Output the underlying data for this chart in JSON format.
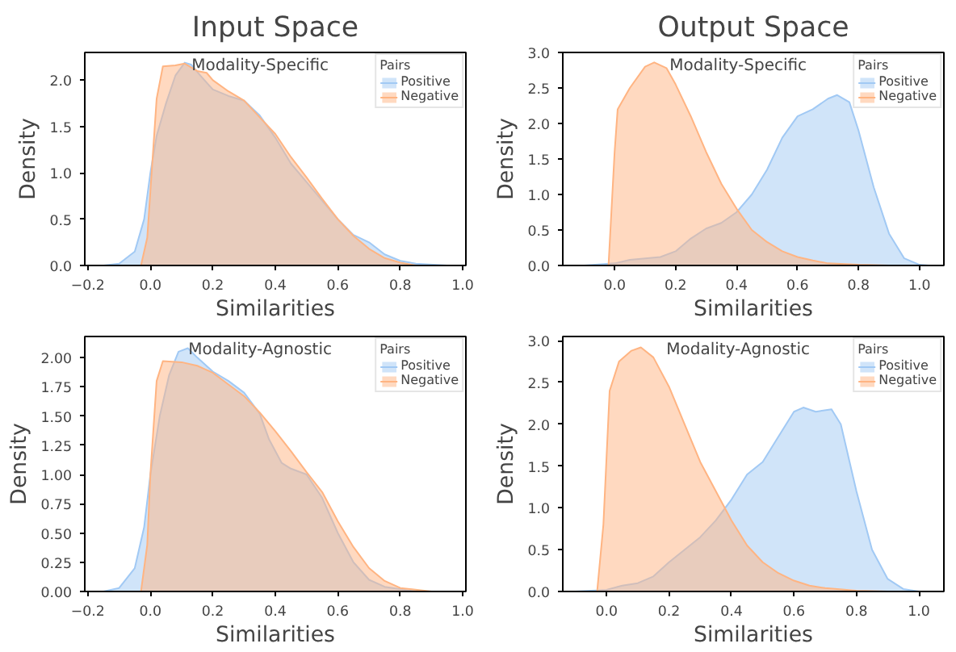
{
  "chart_data": [
    {
      "type": "area",
      "title": "Input Space",
      "subtitle": "Modality-Specific",
      "xlabel": "Similarities",
      "ylabel": "Density",
      "legend_title": "Pairs",
      "legend": "top right",
      "xlim": [
        -0.21,
        1.01
      ],
      "ylim": [
        0,
        2.3
      ],
      "xticks": [
        {
          "value": -0.2,
          "label": "−0.2"
        },
        {
          "value": 0,
          "label": "0.0"
        },
        {
          "value": 0.2,
          "label": "0.2"
        },
        {
          "value": 0.4,
          "label": "0.4"
        },
        {
          "value": 0.6,
          "label": "0.6"
        },
        {
          "value": 0.8,
          "label": "0.8"
        },
        {
          "value": 1,
          "label": "1.0"
        }
      ],
      "yticks": [
        {
          "value": 0,
          "label": "0.0"
        },
        {
          "value": 0.5,
          "label": "0.5"
        },
        {
          "value": 1,
          "label": "1.0"
        },
        {
          "value": 1.5,
          "label": "1.5"
        },
        {
          "value": 2,
          "label": "2.0"
        }
      ],
      "series": [
        {
          "name": "Positive",
          "color": "#a1c9f4",
          "x": [
            -0.15,
            -0.1,
            -0.05,
            -0.02,
            0.0,
            0.02,
            0.05,
            0.08,
            0.11,
            0.13,
            0.16,
            0.2,
            0.25,
            0.3,
            0.35,
            0.4,
            0.45,
            0.5,
            0.55,
            0.6,
            0.65,
            0.7,
            0.75,
            0.8,
            0.85,
            0.95
          ],
          "values": [
            0,
            0.02,
            0.15,
            0.5,
            1.0,
            1.4,
            1.75,
            2.05,
            2.19,
            2.17,
            2.05,
            1.9,
            1.83,
            1.78,
            1.62,
            1.38,
            1.1,
            0.9,
            0.7,
            0.5,
            0.33,
            0.25,
            0.12,
            0.05,
            0.02,
            0
          ]
        },
        {
          "name": "Negative",
          "color": "#ffb482",
          "x": [
            -0.03,
            -0.01,
            0.0,
            0.02,
            0.04,
            0.08,
            0.11,
            0.15,
            0.18,
            0.2,
            0.25,
            0.3,
            0.35,
            0.4,
            0.45,
            0.5,
            0.55,
            0.6,
            0.65,
            0.7,
            0.75,
            0.8,
            0.85
          ],
          "values": [
            0,
            0.3,
            0.8,
            1.8,
            2.15,
            2.16,
            2.18,
            2.1,
            2.08,
            2.0,
            1.88,
            1.78,
            1.6,
            1.42,
            1.17,
            0.95,
            0.72,
            0.5,
            0.32,
            0.18,
            0.08,
            0.03,
            0
          ]
        }
      ]
    },
    {
      "type": "area",
      "title": "Output Space",
      "subtitle": "Modality-Specific",
      "xlabel": "Similarities",
      "ylabel": "Density",
      "legend_title": "Pairs",
      "legend": "top right",
      "xlim": [
        -0.17,
        1.08
      ],
      "ylim": [
        0,
        3.0
      ],
      "xticks": [
        {
          "value": 0,
          "label": "0.0"
        },
        {
          "value": 0.2,
          "label": "0.2"
        },
        {
          "value": 0.4,
          "label": "0.4"
        },
        {
          "value": 0.6,
          "label": "0.6"
        },
        {
          "value": 0.8,
          "label": "0.8"
        },
        {
          "value": 1,
          "label": "1.0"
        }
      ],
      "yticks": [
        {
          "value": 0,
          "label": "0.0"
        },
        {
          "value": 0.5,
          "label": "0.5"
        },
        {
          "value": 1,
          "label": "1.0"
        },
        {
          "value": 1.5,
          "label": "1.5"
        },
        {
          "value": 2,
          "label": "2.0"
        },
        {
          "value": 2.5,
          "label": "2.5"
        },
        {
          "value": 3,
          "label": "3.0"
        }
      ],
      "series": [
        {
          "name": "Positive",
          "color": "#a1c9f4",
          "x": [
            -0.1,
            0.0,
            0.05,
            0.15,
            0.2,
            0.25,
            0.3,
            0.35,
            0.4,
            0.45,
            0.5,
            0.55,
            0.6,
            0.65,
            0.7,
            0.73,
            0.77,
            0.8,
            0.85,
            0.9,
            0.95,
            1.0,
            1.03
          ],
          "values": [
            0,
            0.03,
            0.08,
            0.12,
            0.2,
            0.38,
            0.52,
            0.6,
            0.75,
            1.0,
            1.35,
            1.8,
            2.1,
            2.2,
            2.35,
            2.4,
            2.3,
            1.9,
            1.1,
            0.45,
            0.1,
            0.01,
            0
          ]
        },
        {
          "name": "Negative",
          "color": "#ffb482",
          "x": [
            -0.02,
            0.0,
            0.01,
            0.05,
            0.1,
            0.13,
            0.17,
            0.2,
            0.25,
            0.3,
            0.35,
            0.4,
            0.45,
            0.5,
            0.55,
            0.6,
            0.65,
            0.7,
            0.8,
            0.9
          ],
          "values": [
            0,
            1.6,
            2.2,
            2.5,
            2.8,
            2.86,
            2.78,
            2.55,
            2.1,
            1.6,
            1.15,
            0.8,
            0.5,
            0.33,
            0.2,
            0.12,
            0.07,
            0.03,
            0.01,
            0
          ]
        }
      ]
    },
    {
      "type": "area",
      "subtitle": "Modality-Agnostic",
      "xlabel": "Similarities",
      "ylabel": "Density",
      "legend_title": "Pairs",
      "legend": "top right",
      "xlim": [
        -0.21,
        1.01
      ],
      "ylim": [
        0,
        2.18
      ],
      "xticks": [
        {
          "value": -0.2,
          "label": "−0.2"
        },
        {
          "value": 0,
          "label": "0.0"
        },
        {
          "value": 0.2,
          "label": "0.2"
        },
        {
          "value": 0.4,
          "label": "0.4"
        },
        {
          "value": 0.6,
          "label": "0.6"
        },
        {
          "value": 0.8,
          "label": "0.8"
        },
        {
          "value": 1,
          "label": "1.0"
        }
      ],
      "yticks": [
        {
          "value": 0,
          "label": "0.00"
        },
        {
          "value": 0.25,
          "label": "0.25"
        },
        {
          "value": 0.5,
          "label": "0.50"
        },
        {
          "value": 0.75,
          "label": "0.75"
        },
        {
          "value": 1,
          "label": "1.00"
        },
        {
          "value": 1.25,
          "label": "1.25"
        },
        {
          "value": 1.5,
          "label": "1.50"
        },
        {
          "value": 1.75,
          "label": "1.75"
        },
        {
          "value": 2,
          "label": "2.00"
        }
      ],
      "series": [
        {
          "name": "Positive",
          "color": "#a1c9f4",
          "x": [
            -0.15,
            -0.1,
            -0.05,
            -0.02,
            0.0,
            0.03,
            0.06,
            0.09,
            0.12,
            0.15,
            0.2,
            0.25,
            0.3,
            0.35,
            0.38,
            0.42,
            0.45,
            0.5,
            0.55,
            0.6,
            0.65,
            0.7,
            0.75,
            0.85
          ],
          "values": [
            0,
            0.03,
            0.2,
            0.55,
            1.0,
            1.5,
            1.85,
            2.05,
            2.08,
            2.0,
            1.88,
            1.8,
            1.7,
            1.52,
            1.3,
            1.1,
            1.05,
            1.0,
            0.8,
            0.5,
            0.25,
            0.1,
            0.04,
            0
          ]
        },
        {
          "name": "Negative",
          "color": "#ffb482",
          "x": [
            -0.03,
            -0.01,
            0.0,
            0.02,
            0.04,
            0.1,
            0.15,
            0.2,
            0.25,
            0.3,
            0.35,
            0.4,
            0.45,
            0.5,
            0.55,
            0.6,
            0.65,
            0.7,
            0.75,
            0.8,
            0.9
          ],
          "values": [
            0,
            0.4,
            1.0,
            1.8,
            1.97,
            1.96,
            1.93,
            1.87,
            1.77,
            1.67,
            1.53,
            1.37,
            1.2,
            1.02,
            0.85,
            0.6,
            0.38,
            0.2,
            0.09,
            0.03,
            0
          ]
        }
      ]
    },
    {
      "type": "area",
      "subtitle": "Modality-Agnostic",
      "xlabel": "Similarities",
      "ylabel": "Density",
      "legend_title": "Pairs",
      "legend": "top right",
      "xlim": [
        -0.14,
        1.08
      ],
      "ylim": [
        0,
        3.05
      ],
      "xticks": [
        {
          "value": 0,
          "label": "0.0"
        },
        {
          "value": 0.2,
          "label": "0.2"
        },
        {
          "value": 0.4,
          "label": "0.4"
        },
        {
          "value": 0.6,
          "label": "0.6"
        },
        {
          "value": 0.8,
          "label": "0.8"
        },
        {
          "value": 1,
          "label": "1.0"
        }
      ],
      "yticks": [
        {
          "value": 0,
          "label": "0.0"
        },
        {
          "value": 0.5,
          "label": "0.5"
        },
        {
          "value": 1,
          "label": "1.0"
        },
        {
          "value": 1.5,
          "label": "1.5"
        },
        {
          "value": 2,
          "label": "2.0"
        },
        {
          "value": 2.5,
          "label": "2.5"
        },
        {
          "value": 3,
          "label": "3.0"
        }
      ],
      "series": [
        {
          "name": "Positive",
          "color": "#a1c9f4",
          "x": [
            -0.1,
            0.0,
            0.05,
            0.1,
            0.15,
            0.2,
            0.25,
            0.3,
            0.35,
            0.4,
            0.45,
            0.5,
            0.55,
            0.6,
            0.63,
            0.67,
            0.72,
            0.75,
            0.8,
            0.85,
            0.9,
            0.95,
            1.0
          ],
          "values": [
            0,
            0.02,
            0.07,
            0.1,
            0.18,
            0.35,
            0.5,
            0.65,
            0.85,
            1.1,
            1.4,
            1.55,
            1.85,
            2.15,
            2.2,
            2.15,
            2.18,
            2.0,
            1.2,
            0.5,
            0.15,
            0.03,
            0
          ]
        },
        {
          "name": "Negative",
          "color": "#ffb482",
          "x": [
            -0.03,
            -0.01,
            0.0,
            0.01,
            0.04,
            0.08,
            0.11,
            0.15,
            0.2,
            0.25,
            0.3,
            0.35,
            0.4,
            0.45,
            0.5,
            0.55,
            0.6,
            0.65,
            0.7,
            0.8,
            0.9
          ],
          "values": [
            0,
            0.8,
            1.6,
            2.4,
            2.75,
            2.88,
            2.92,
            2.8,
            2.45,
            2.0,
            1.55,
            1.2,
            0.85,
            0.55,
            0.35,
            0.22,
            0.13,
            0.07,
            0.04,
            0.01,
            0
          ]
        }
      ]
    }
  ]
}
